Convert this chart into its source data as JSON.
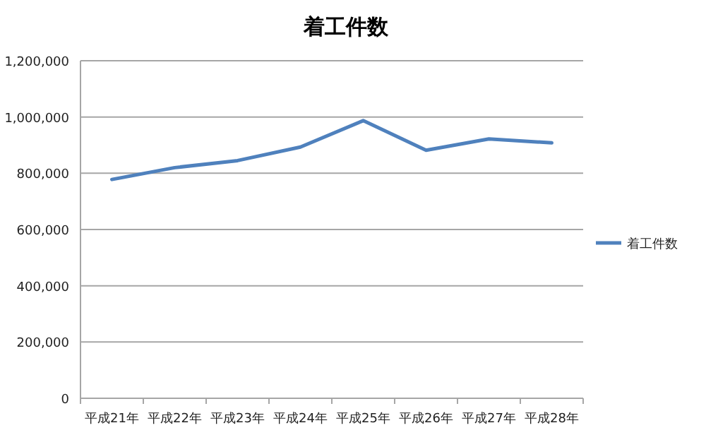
{
  "chart_data": {
    "type": "line",
    "title": "着工件数",
    "categories": [
      "平成21年",
      "平成22年",
      "平成23年",
      "平成24年",
      "平成25年",
      "平成26年",
      "平成27年",
      "平成28年"
    ],
    "series": [
      {
        "name": "着工件数",
        "color": "#4f81bd",
        "values": [
          778000,
          820000,
          845000,
          893000,
          987000,
          882000,
          922000,
          908000
        ]
      }
    ],
    "ylim": [
      0,
      1200000
    ],
    "yticks": [
      {
        "value": 0,
        "label": "0"
      },
      {
        "value": 200000,
        "label": "200,000"
      },
      {
        "value": 400000,
        "label": "400,000"
      },
      {
        "value": 600000,
        "label": "600,000"
      },
      {
        "value": 800000,
        "label": "800,000"
      },
      {
        "value": 1000000,
        "label": "1,000,000"
      },
      {
        "value": 1200000,
        "label": "1,200,000"
      }
    ],
    "grid": "y",
    "legend": "right",
    "marker": "none"
  }
}
